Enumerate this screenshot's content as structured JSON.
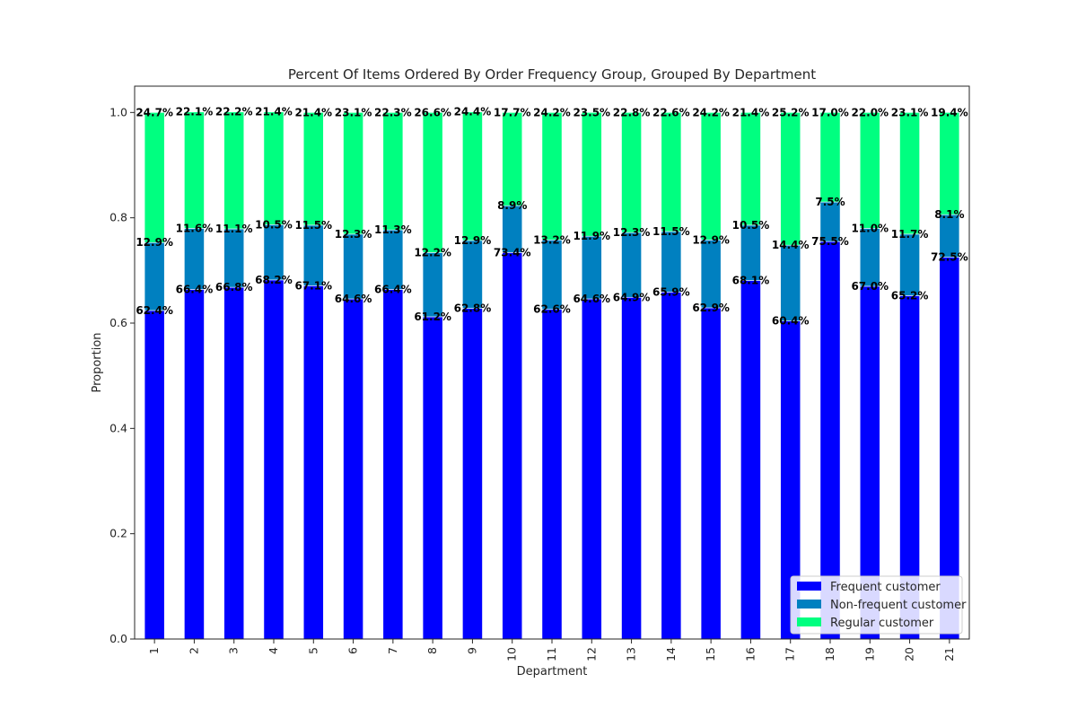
{
  "chart_data": {
    "type": "bar",
    "stacked": true,
    "title": "Percent Of Items Ordered By Order Frequency Group, Grouped By Department",
    "xlabel": "Department",
    "ylabel": "Proportion",
    "ylim": [
      0,
      1.05
    ],
    "yticks": [
      "0.0",
      "0.2",
      "0.4",
      "0.6",
      "0.8",
      "1.0"
    ],
    "categories": [
      "1",
      "2",
      "3",
      "4",
      "5",
      "6",
      "7",
      "8",
      "9",
      "10",
      "11",
      "12",
      "13",
      "14",
      "15",
      "16",
      "17",
      "18",
      "19",
      "20",
      "21"
    ],
    "series": [
      {
        "name": "Frequent customer",
        "color": "#0000ff",
        "values": [
          0.624,
          0.664,
          0.668,
          0.682,
          0.671,
          0.646,
          0.664,
          0.612,
          0.628,
          0.734,
          0.626,
          0.646,
          0.649,
          0.659,
          0.629,
          0.681,
          0.604,
          0.755,
          0.67,
          0.652,
          0.725
        ],
        "labels": [
          "62.4%",
          "66.4%",
          "66.8%",
          "68.2%",
          "67.1%",
          "64.6%",
          "66.4%",
          "61.2%",
          "62.8%",
          "73.4%",
          "62.6%",
          "64.6%",
          "64.9%",
          "65.9%",
          "62.9%",
          "68.1%",
          "60.4%",
          "75.5%",
          "67.0%",
          "65.2%",
          "72.5%"
        ]
      },
      {
        "name": "Non-frequent customer",
        "color": "#0080c0",
        "values": [
          0.129,
          0.116,
          0.111,
          0.105,
          0.115,
          0.123,
          0.113,
          0.122,
          0.129,
          0.089,
          0.132,
          0.119,
          0.123,
          0.115,
          0.129,
          0.105,
          0.144,
          0.075,
          0.11,
          0.117,
          0.081
        ],
        "labels": [
          "12.9%",
          "11.6%",
          "11.1%",
          "10.5%",
          "11.5%",
          "12.3%",
          "11.3%",
          "12.2%",
          "12.9%",
          "8.9%",
          "13.2%",
          "11.9%",
          "12.3%",
          "11.5%",
          "12.9%",
          "10.5%",
          "14.4%",
          "7.5%",
          "11.0%",
          "11.7%",
          "8.1%"
        ]
      },
      {
        "name": "Regular customer",
        "color": "#00ff80",
        "values": [
          0.247,
          0.221,
          0.222,
          0.214,
          0.214,
          0.231,
          0.223,
          0.266,
          0.244,
          0.177,
          0.242,
          0.235,
          0.228,
          0.226,
          0.242,
          0.214,
          0.252,
          0.17,
          0.22,
          0.231,
          0.194
        ],
        "labels": [
          "24.7%",
          "22.1%",
          "22.2%",
          "21.4%",
          "21.4%",
          "23.1%",
          "22.3%",
          "26.6%",
          "24.4%",
          "17.7%",
          "24.2%",
          "23.5%",
          "22.8%",
          "22.6%",
          "24.2%",
          "21.4%",
          "25.2%",
          "17.0%",
          "22.0%",
          "23.1%",
          "19.4%"
        ]
      }
    ],
    "legend_position": "lower-right",
    "grid": false
  }
}
